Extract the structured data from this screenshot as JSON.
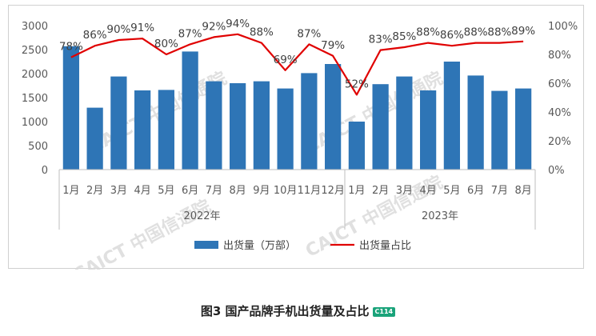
{
  "chart_data": {
    "type": "bar",
    "categories": [
      "1月",
      "2月",
      "3月",
      "4月",
      "5月",
      "6月",
      "7月",
      "8月",
      "9月",
      "10月",
      "11月",
      "12月",
      "1月",
      "2月",
      "3月",
      "4月",
      "5月",
      "6月",
      "7月",
      "8月"
    ],
    "groups": [
      {
        "label": "2022年",
        "count": 12
      },
      {
        "label": "2023年",
        "count": 8
      }
    ],
    "series": [
      {
        "name": "出货量（万部）",
        "type": "bar",
        "axis": "left",
        "color": "#2e75b6",
        "values": [
          2570,
          1290,
          1940,
          1650,
          1660,
          2460,
          1840,
          1800,
          1840,
          1690,
          2010,
          2200,
          1000,
          1780,
          1940,
          1650,
          2250,
          1960,
          1640,
          1690
        ]
      },
      {
        "name": "出货量占比",
        "type": "line",
        "axis": "right",
        "color": "#e00000",
        "values": [
          78,
          86,
          90,
          91,
          80,
          87,
          92,
          94,
          88,
          69,
          87,
          79,
          52,
          83,
          85,
          88,
          86,
          88,
          88,
          89
        ],
        "labels": [
          "78%",
          "86%",
          "90%",
          "91%",
          "80%",
          "87%",
          "92%",
          "94%",
          "88%",
          "69%",
          "87%",
          "79%",
          "52%",
          "83%",
          "85%",
          "88%",
          "86%",
          "88%",
          "88%",
          "89%"
        ]
      }
    ],
    "y_left": {
      "ylim": [
        0,
        3000
      ],
      "ticks": [
        "0",
        "500",
        "1000",
        "1500",
        "2000",
        "2500",
        "3000"
      ]
    },
    "y_right": {
      "ylim": [
        0,
        100
      ],
      "ticks": [
        "0%",
        "20%",
        "40%",
        "60%",
        "80%",
        "100%"
      ]
    },
    "legend_position": "bottom",
    "grid": false,
    "watermark": "CAICT 中国信通院"
  },
  "caption": {
    "text": "图3 国产品牌手机出货量及占比",
    "badge": "C114"
  }
}
